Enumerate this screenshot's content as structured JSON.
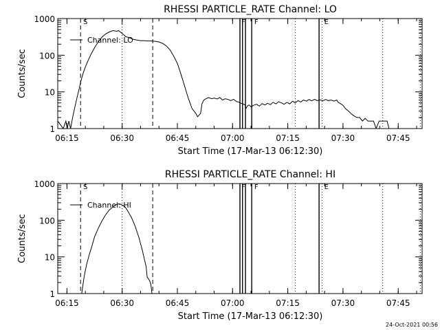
{
  "chart_data": [
    {
      "type": "line",
      "title": "RHESSI PARTICLE_RATE Channel: LO",
      "xlabel": "Start Time (17-Mar-13 06:12:30)",
      "ylabel": "Counts/sec",
      "yscale": "log",
      "xlim": [
        0,
        99
      ],
      "ylim": [
        1,
        1000
      ],
      "xtick_values": [
        2.5,
        17.5,
        32.5,
        47.5,
        62.5,
        77.5,
        92.5
      ],
      "xtick_labels": [
        "06:15",
        "06:30",
        "06:45",
        "07:00",
        "07:15",
        "07:30",
        "07:45"
      ],
      "ytick_values": [
        1,
        10,
        100,
        1000
      ],
      "ytick_labels": [
        "1",
        "10",
        "100",
        "1000"
      ],
      "legend": "Channel: LO",
      "series": [
        {
          "name": "Channel: LO",
          "x": [
            0,
            1.5,
            2.2,
            2.6,
            3.0,
            3.5,
            4.0,
            4.4,
            4.8,
            5.3,
            5.8,
            6.3,
            6.9,
            7.5,
            8.2,
            9.0,
            10.0,
            11.0,
            12.0,
            13.0,
            14.0,
            15.0,
            16.0,
            16.5,
            17.0,
            17.8,
            18.5,
            19.5,
            20.5,
            21.5,
            22.5,
            23.5,
            24.5,
            25.5,
            26.5,
            27.5,
            28.5,
            29.5,
            30.5,
            31.5,
            32.5,
            33.5,
            34.5,
            35.5,
            36.5,
            37.5,
            38.0,
            38.8,
            39.2,
            39.7,
            40.3,
            41.0,
            41.8,
            42.5,
            43.3,
            44.0,
            44.8,
            45.5,
            46.3,
            47.0,
            47.8,
            48.5,
            49.3,
            50.0,
            50.8,
            51.2,
            51.6,
            52.0,
            52.5,
            53.2,
            54.0,
            54.8,
            55.5,
            56.3,
            57.0,
            57.8,
            58.5,
            59.3,
            60.0,
            60.8,
            61.5,
            62.3,
            63.0,
            63.8,
            64.5,
            65.3,
            66.0,
            66.8,
            67.5,
            68.3,
            69.0,
            69.8,
            70.5,
            71.3,
            72.0,
            72.8,
            73.5,
            74.3,
            75.0,
            75.8,
            76.2,
            76.8,
            77.5,
            78.2,
            79.0,
            79.8,
            80.5,
            81.3,
            82.0,
            82.8,
            83.5,
            84.3,
            85.0,
            85.8,
            86.5,
            87.3,
            88.0,
            88.8,
            89.5,
            90.0
          ],
          "y": [
            1.6,
            1.0,
            1.6,
            1.0,
            1.6,
            1.0,
            1.9,
            3.0,
            4.5,
            7.5,
            12,
            20,
            32,
            48,
            70,
            105,
            160,
            230,
            310,
            380,
            430,
            470,
            450,
            470,
            430,
            370,
            320,
            300,
            270,
            260,
            250,
            250,
            245,
            245,
            240,
            230,
            210,
            180,
            140,
            95,
            60,
            30,
            14,
            6.5,
            3.5,
            2.6,
            2.1,
            2.6,
            4.8,
            6.0,
            6.5,
            7.0,
            6.5,
            6.8,
            6.4,
            7.0,
            6.0,
            6.5,
            6.2,
            5.8,
            6.3,
            5.5,
            5.2,
            4.8,
            4.5,
            3.6,
            4.2,
            4.4,
            3.9,
            4.3,
            4.6,
            4.1,
            4.8,
            4.4,
            4.9,
            4.5,
            5.2,
            4.7,
            5.4,
            5.0,
            4.6,
            5.2,
            4.7,
            5.6,
            5.0,
            5.8,
            5.3,
            6.0,
            5.6,
            6.2,
            5.7,
            6.3,
            5.8,
            6.1,
            5.7,
            6.2,
            5.8,
            6.0,
            5.6,
            6.0,
            5.2,
            4.8,
            4.3,
            3.5,
            3.0,
            2.5,
            2.2,
            2.0,
            2.0,
            1.6,
            1.9,
            1.6,
            1.6,
            1.6,
            1.0,
            1.6,
            1.6,
            1.6,
            1.6,
            1.0
          ]
        }
      ],
      "vlines_dashed": [
        6.2,
        25.8
      ],
      "vlines_dotted": [
        17.5,
        64.5,
        71.8,
        88.3,
        98.5
      ],
      "vlines_solid": [
        49.5,
        50.2,
        51.0,
        52.7,
        71.0
      ],
      "flags": [
        {
          "text": "S",
          "x": 6.9
        },
        {
          "text": "F",
          "x": 49.9
        },
        {
          "text": "F",
          "x": 53.4
        },
        {
          "text": "E",
          "x": 72.4
        }
      ]
    },
    {
      "type": "line",
      "title": "RHESSI PARTICLE_RATE Channel: HI",
      "xlabel": "Start Time (17-Mar-13 06:12:30)",
      "ylabel": "Counts/sec",
      "yscale": "log",
      "xlim": [
        0,
        99
      ],
      "ylim": [
        1,
        1000
      ],
      "xtick_values": [
        2.5,
        17.5,
        32.5,
        47.5,
        62.5,
        77.5,
        92.5
      ],
      "xtick_labels": [
        "06:15",
        "06:30",
        "06:45",
        "07:00",
        "07:15",
        "07:30",
        "07:45"
      ],
      "ytick_values": [
        1,
        10,
        100,
        1000
      ],
      "ytick_labels": [
        "1",
        "10",
        "100",
        "1000"
      ],
      "legend": "Channel: HI",
      "series": [
        {
          "name": "Channel: HI",
          "x": [
            6.5,
            6.8,
            7.2,
            7.8,
            8.5,
            9.3,
            10.0,
            11.0,
            12.0,
            13.0,
            14.0,
            15.0,
            16.0,
            16.8,
            17.5,
            18.3,
            19.0,
            20.0,
            21.0,
            22.0,
            23.0,
            23.5,
            24.0,
            24.3,
            24.7,
            25.0,
            25.3,
            25.6
          ],
          "y": [
            1.0,
            1.6,
            3.0,
            6,
            11,
            20,
            35,
            60,
            95,
            140,
            190,
            230,
            270,
            280,
            260,
            230,
            180,
            120,
            70,
            35,
            15,
            9,
            5.5,
            2.8,
            2.5,
            2.2,
            1.8,
            1.0
          ]
        }
      ],
      "vlines_dashed": [
        6.2,
        25.8
      ],
      "vlines_dotted": [
        17.5,
        64.5,
        71.8,
        88.3,
        98.5
      ],
      "vlines_solid": [
        49.5,
        50.2,
        51.0,
        52.7,
        71.0
      ],
      "flags": [
        {
          "text": "S",
          "x": 6.9
        },
        {
          "text": "F",
          "x": 49.9
        },
        {
          "text": "F",
          "x": 53.4
        },
        {
          "text": "E",
          "x": 72.4
        }
      ]
    }
  ],
  "footer": {
    "timestamp": "24-Oct-2021 00:56"
  }
}
